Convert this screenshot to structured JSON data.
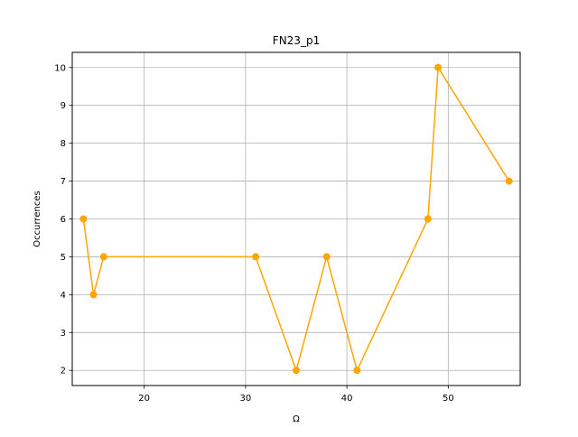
{
  "chart_data": {
    "type": "line",
    "title": "FN23_p1",
    "xlabel": "Ω",
    "ylabel": "Occurrences",
    "xlim": [
      12.9,
      57.1
    ],
    "ylim": [
      1.6,
      10.4
    ],
    "x_ticks": [
      20,
      30,
      40,
      50
    ],
    "y_ticks": [
      2,
      3,
      4,
      5,
      6,
      7,
      8,
      9,
      10
    ],
    "grid": true,
    "legend": "none",
    "series": [
      {
        "color": "#FFA500",
        "marker": "circle",
        "x": [
          14,
          15,
          16,
          31,
          35,
          38,
          41,
          48,
          49,
          56
        ],
        "y": [
          6,
          4,
          5,
          5,
          2,
          5,
          2,
          6,
          10,
          7
        ]
      }
    ]
  }
}
